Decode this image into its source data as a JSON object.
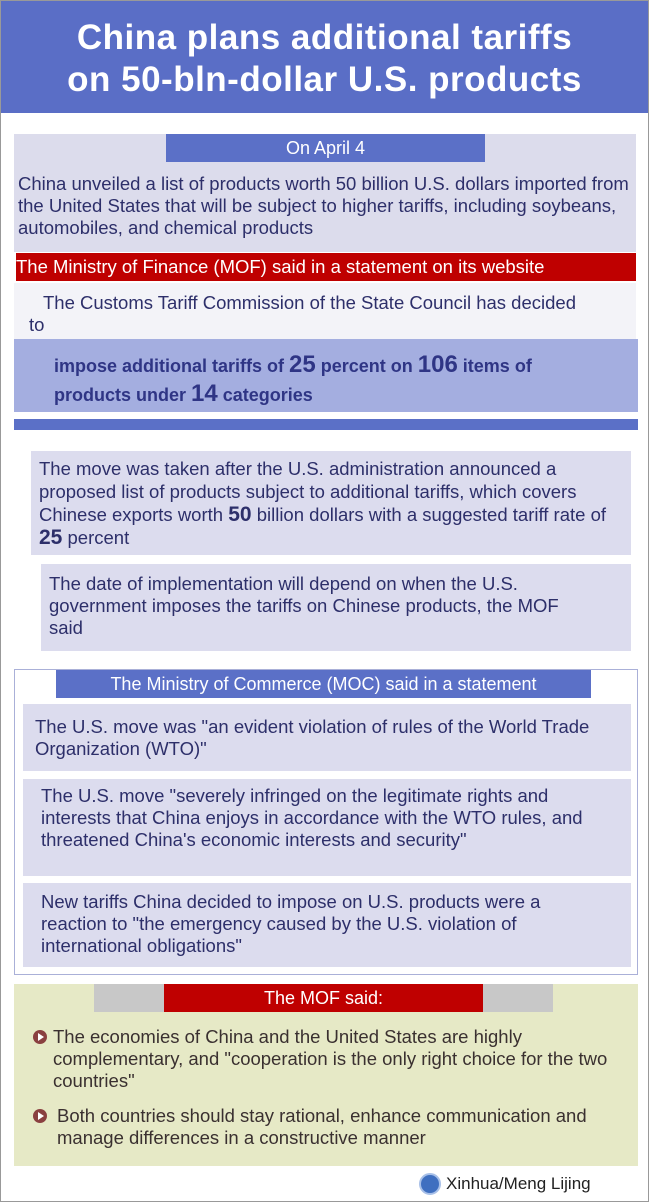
{
  "title": {
    "line1": "China plans additional tariffs",
    "line2": "on 50-bln-dollar U.S. products"
  },
  "section1": {
    "date_label": "On April 4",
    "text": "China  unveiled a list of products worth 50 billion U.S. dollars imported from the United States that will be subject to higher tariffs, including soybeans, automobiles, and chemical products"
  },
  "mof_banner": "The Ministry of Finance (MOF) said in a statement on its website",
  "commission_text": "The Customs Tariff Commission of the State Council has decided to",
  "impose": {
    "a": "impose additional tariffs of ",
    "n1": "25",
    "b": " percent on ",
    "n2": "106",
    "c": " items of products under ",
    "n3": "14",
    "d": " categories"
  },
  "move": {
    "a": "The move was taken after the U.S. administration announced a proposed list of products subject to additional tariffs, which covers Chinese exports worth ",
    "n1": "50",
    "b": " billion dollars with a suggested tariff rate of ",
    "n2": "25",
    "c": " percent"
  },
  "implementation": "The date of implementation will depend on when the U.S. government imposes the tariffs on Chinese products, the MOF said",
  "moc": {
    "banner": "The Ministry of Commerce (MOC) said in a statement",
    "items": [
      "The U.S. move was \"an evident violation of rules of the World Trade Organization (WTO)\"",
      "The U.S. move \"severely infringed on the legitimate rights and interests that China enjoys in accordance with the WTO rules, and threatened China's economic interests and security\"",
      "New tariffs China decided to impose on U.S. products were a reaction to \"the emergency caused by the U.S. violation of international obligations\""
    ]
  },
  "mof_said": {
    "banner": "The MOF said:",
    "items": [
      "The economies of China and the United States are highly complementary, and \"cooperation is the only right choice for the two countries\"",
      "Both countries should stay rational, enhance communication and manage differences in a constructive manner"
    ]
  },
  "credit": "Xinhua/Meng Lijing",
  "colors": {
    "header_blue": "#5a6ec6",
    "red": "#bf0000",
    "lavender": "#dcdcee",
    "green": "#e6e9c6"
  }
}
